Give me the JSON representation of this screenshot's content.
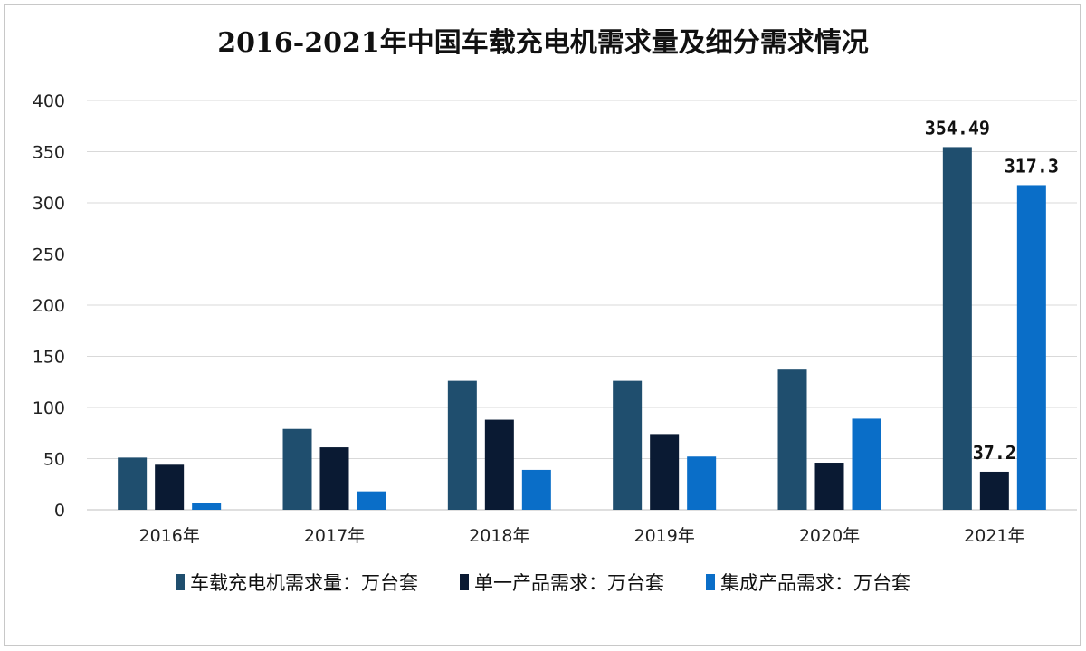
{
  "chart_data": {
    "type": "bar",
    "title": "2016-2021年中国车载充电机需求量及细分需求情况",
    "categories": [
      "2016年",
      "2017年",
      "2018年",
      "2019年",
      "2020年",
      "2021年"
    ],
    "series": [
      {
        "name": "车载充电机需求量：万台套",
        "color": "#1f4e6e",
        "values": [
          51,
          79,
          126,
          126,
          137,
          354.49
        ]
      },
      {
        "name": "单一产品需求：万台套",
        "color": "#0a1a33",
        "values": [
          44,
          61,
          88,
          74,
          46,
          37.2
        ]
      },
      {
        "name": "集成产品需求：万台套",
        "color": "#0a6ec8",
        "values": [
          7,
          18,
          39,
          52,
          89,
          317.3
        ]
      }
    ],
    "data_labels": [
      {
        "series": 0,
        "category": 5,
        "text": "354.49"
      },
      {
        "series": 1,
        "category": 5,
        "text": "37.2"
      },
      {
        "series": 2,
        "category": 5,
        "text": "317.3"
      }
    ],
    "yticks": [
      "0",
      "50",
      "100",
      "150",
      "200",
      "250",
      "300",
      "350",
      "400"
    ],
    "ylim": [
      0,
      400
    ],
    "grid": true,
    "legend_position": "bottom"
  }
}
